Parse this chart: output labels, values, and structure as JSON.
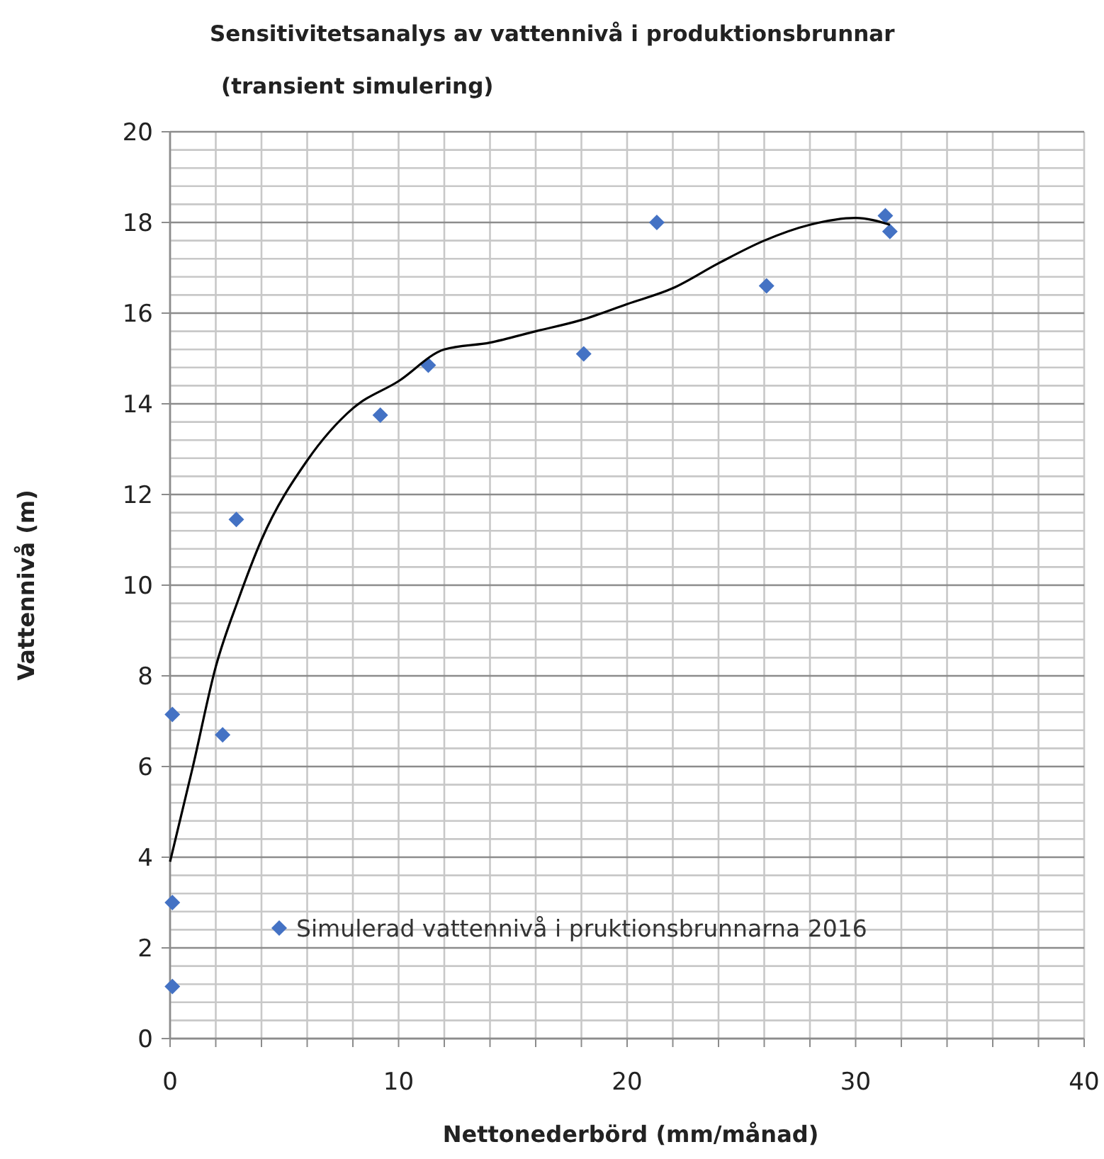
{
  "chart_data": {
    "type": "scatter",
    "title": "Sensitivitetsanalys av vattennivå i produktionsbrunnar",
    "subtitle": "(transient simulering)",
    "xlabel": "Nettonederbörd (mm/månad)",
    "ylabel": "Vattennivå (m)",
    "xlim": [
      0,
      40
    ],
    "ylim": [
      0,
      20
    ],
    "xticks": [
      0,
      {
        "value": 2,
        "label": null
      },
      {
        "value": 4,
        "label": null
      },
      {
        "value": 6,
        "label": null
      },
      {
        "value": 8,
        "label": null
      },
      10,
      {
        "value": 12,
        "label": null
      },
      {
        "value": 14,
        "label": null
      },
      {
        "value": 16,
        "label": null
      },
      {
        "value": 18,
        "label": null
      },
      20,
      {
        "value": 22,
        "label": null
      },
      {
        "value": 24,
        "label": null
      },
      {
        "value": 26,
        "label": null
      },
      {
        "value": 28,
        "label": null
      },
      30,
      {
        "value": 32,
        "label": null
      },
      {
        "value": 34,
        "label": null
      },
      {
        "value": 36,
        "label": null
      },
      {
        "value": 38,
        "label": null
      },
      40
    ],
    "yticks": [
      0,
      {
        "value": 0.4,
        "label": null
      },
      {
        "value": 0.8,
        "label": null
      },
      {
        "value": 1.2,
        "label": null
      },
      {
        "value": 1.6,
        "label": null
      },
      2,
      {
        "value": 2.4,
        "label": null
      },
      {
        "value": 2.8,
        "label": null
      },
      {
        "value": 3.2,
        "label": null
      },
      {
        "value": 3.6,
        "label": null
      },
      4,
      {
        "value": 4.4,
        "label": null
      },
      {
        "value": 4.8,
        "label": null
      },
      {
        "value": 5.2,
        "label": null
      },
      {
        "value": 5.6,
        "label": null
      },
      6,
      {
        "value": 6.4,
        "label": null
      },
      {
        "value": 6.8,
        "label": null
      },
      {
        "value": 7.2,
        "label": null
      },
      {
        "value": 7.6,
        "label": null
      },
      8,
      {
        "value": 8.4,
        "label": null
      },
      {
        "value": 8.8,
        "label": null
      },
      {
        "value": 9.2,
        "label": null
      },
      {
        "value": 9.6,
        "label": null
      },
      10,
      {
        "value": 10.4,
        "label": null
      },
      {
        "value": 10.8,
        "label": null
      },
      {
        "value": 11.2,
        "label": null
      },
      {
        "value": 11.6,
        "label": null
      },
      12,
      {
        "value": 12.4,
        "label": null
      },
      {
        "value": 12.8,
        "label": null
      },
      {
        "value": 13.2,
        "label": null
      },
      {
        "value": 13.6,
        "label": null
      },
      14,
      {
        "value": 14.4,
        "label": null
      },
      {
        "value": 14.8,
        "label": null
      },
      {
        "value": 15.2,
        "label": null
      },
      {
        "value": 15.6,
        "label": null
      },
      16,
      {
        "value": 16.4,
        "label": null
      },
      {
        "value": 16.8,
        "label": null
      },
      {
        "value": 17.2,
        "label": null
      },
      {
        "value": 17.6,
        "label": null
      },
      18,
      {
        "value": 18.4,
        "label": null
      },
      {
        "value": 18.8,
        "label": null
      },
      {
        "value": 19.2,
        "label": null
      },
      {
        "value": 19.6,
        "label": null
      },
      20
    ],
    "grid": true,
    "legend": "bottom",
    "marker": "diamond",
    "series": [
      {
        "name": "Simulerad vattennivå i pruktionsbrunnarna 2016",
        "color": "#4472c4",
        "x": [
          0.1,
          0.1,
          0.1,
          2.3,
          2.9,
          9.2,
          11.3,
          18.1,
          21.3,
          26.1,
          31.3,
          31.5
        ],
        "values": [
          1.15,
          3.0,
          7.15,
          6.7,
          11.45,
          13.75,
          14.85,
          15.1,
          18.0,
          16.6,
          18.15,
          17.8
        ]
      },
      {
        "color": "#000000",
        "type": "line",
        "marker": "none",
        "line_style": "solid",
        "x": [
          0,
          1,
          2,
          3,
          4,
          6,
          8,
          10,
          12,
          14,
          16,
          18,
          20,
          22,
          24,
          26,
          28,
          30,
          31.5
        ],
        "values": [
          3.9,
          6.0,
          8.2,
          9.7,
          11.0,
          12.75,
          13.9,
          14.5,
          15.2,
          15.35,
          15.6,
          15.85,
          16.2,
          16.55,
          17.1,
          17.6,
          17.95,
          18.1,
          17.95
        ]
      }
    ]
  }
}
